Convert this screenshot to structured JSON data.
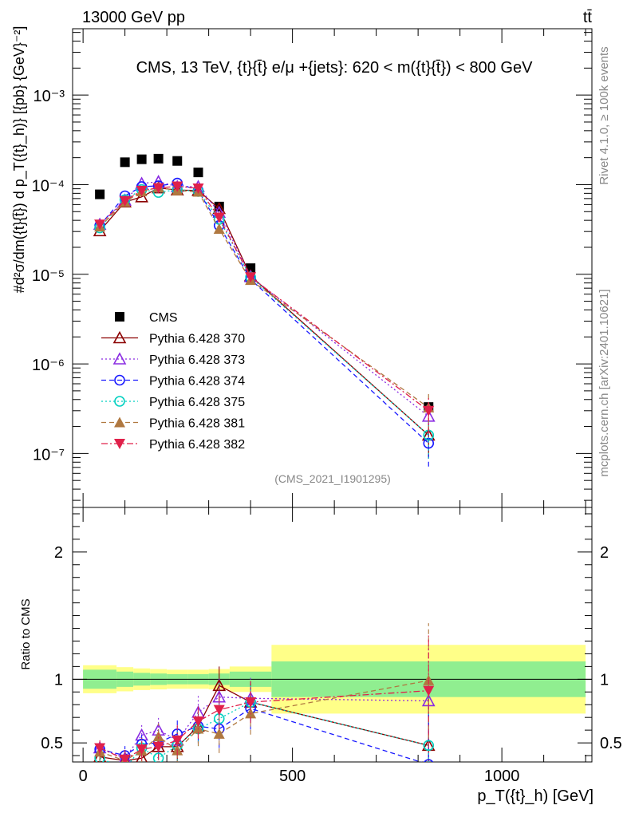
{
  "header": {
    "left": "13000 GeV pp",
    "right": "tt̄"
  },
  "side_labels": {
    "rivet": "Rivet 4.1.0, ≥ 100k events",
    "mcplots": "mcplots.cern.ch [arXiv:2401.10621]"
  },
  "chart_data": [
    {
      "type": "scatter",
      "title": "CMS, 13 TeV, {t}{t̄} e/μ +{jets}: 620 < m({t}{t̄}) < 800 GeV",
      "ylabel": "#d²σ/dm({t}{t̄}) d p_T({t}_h)} [{pb} {GeV}⁻²]",
      "yscale": "log",
      "ylim": [
        2.5e-08,
        0.0055
      ],
      "xlim": [
        -25,
        1215
      ],
      "yticks": [
        "10⁻⁷",
        "10⁻⁶",
        "10⁻⁵",
        "10⁻⁴",
        "10⁻³"
      ],
      "watermark": "(CMS_2021_I1901295)",
      "x": [
        40,
        100,
        140,
        180,
        225,
        275,
        325,
        400,
        825
      ],
      "series": [
        {
          "name": "CMS",
          "color": "#000000",
          "marker": "square",
          "values": [
            7.8e-05,
            0.000178,
            0.000192,
            0.000195,
            0.000184,
            0.000137,
            5.7e-05,
            1.17e-05,
            3.3e-07
          ]
        },
        {
          "name": "Pythia 6.428 370",
          "color": "#8b0000",
          "marker": "triangle-up-open",
          "line": "solid",
          "values": [
            3.05e-05,
            6.4e-05,
            7.3e-05,
            9.2e-05,
            8.7e-05,
            8.6e-05,
            5.4e-05,
            9.6e-06,
            1.6e-07
          ]
        },
        {
          "name": "Pythia 6.428 373",
          "color": "#8a2be2",
          "marker": "triangle-up-open",
          "line": "dotted",
          "values": [
            3.6e-05,
            6.7e-05,
            0.000103,
            0.000108,
            9.5e-05,
            9.5e-05,
            4.9e-05,
            9.4e-06,
            2.6e-07
          ]
        },
        {
          "name": "Pythia 6.428 374",
          "color": "#1a1aff",
          "marker": "circle-open",
          "line": "dashed",
          "values": [
            3.5e-05,
            7.5e-05,
            9.5e-05,
            9.7e-05,
            0.000104,
            8.6e-05,
            3.5e-05,
            8.8e-06,
            1.3e-07
          ]
        },
        {
          "name": "Pythia 6.428 375",
          "color": "#00d0c0",
          "marker": "circle-open",
          "line": "dotted",
          "values": [
            3.3e-05,
            6.8e-05,
            8.8e-05,
            8.2e-05,
            8.8e-05,
            8.4e-05,
            4.1e-05,
            9.3e-06,
            1.6e-07
          ]
        },
        {
          "name": "Pythia 6.428 381",
          "color": "#b07840",
          "marker": "triangle-up",
          "line": "dashed",
          "values": [
            3.4e-05,
            6.4e-05,
            8.4e-05,
            9.3e-05,
            8.6e-05,
            8.3e-05,
            3.2e-05,
            8.6e-06,
            3.25e-07
          ]
        },
        {
          "name": "Pythia 6.428 382",
          "color": "#e0204a",
          "marker": "triangle-down",
          "line": "dashdot",
          "values": [
            3.6e-05,
            6.6e-05,
            8.6e-05,
            9.2e-05,
            9.6e-05,
            9.1e-05,
            4.3e-05,
            9.3e-06,
            3e-07
          ]
        }
      ]
    },
    {
      "type": "scatter",
      "ylabel": "Ratio to CMS",
      "xlabel": "p_T({t}_h) [GeV]",
      "ylim": [
        0.35,
        2.35
      ],
      "xlim": [
        -25,
        1215
      ],
      "yticks": [
        "0.5",
        "1",
        "2"
      ],
      "xticks": [
        "0",
        "500",
        "1000"
      ],
      "band_edges": [
        0,
        80,
        120,
        160,
        200,
        250,
        300,
        350,
        450,
        1200
      ],
      "band_inner": [
        0.075,
        0.06,
        0.05,
        0.045,
        0.04,
        0.04,
        0.045,
        0.06,
        0.14
      ],
      "band_outer": [
        0.11,
        0.095,
        0.085,
        0.08,
        0.075,
        0.075,
        0.08,
        0.1,
        0.27
      ],
      "band_colors": {
        "inner": "#90ee90",
        "outer": "#ffff88"
      },
      "x": [
        40,
        100,
        140,
        180,
        225,
        275,
        325,
        400,
        825
      ],
      "series": [
        {
          "name": "Pythia 6.428 370",
          "values": [
            0.39,
            0.36,
            0.38,
            0.47,
            0.47,
            0.63,
            0.95,
            0.82,
            0.48
          ]
        },
        {
          "name": "Pythia 6.428 373",
          "values": [
            0.46,
            0.38,
            0.56,
            0.6,
            0.52,
            0.74,
            0.86,
            0.85,
            0.83
          ]
        },
        {
          "name": "Pythia 6.428 374",
          "values": [
            0.45,
            0.4,
            0.49,
            0.5,
            0.57,
            0.63,
            0.61,
            0.77,
            0.33
          ]
        },
        {
          "name": "Pythia 6.428 375",
          "values": [
            0.38,
            0.3,
            0.46,
            0.38,
            0.48,
            0.61,
            0.69,
            0.82,
            0.48
          ]
        },
        {
          "name": "Pythia 6.428 381",
          "values": [
            0.43,
            0.36,
            0.44,
            0.55,
            0.44,
            0.61,
            0.57,
            0.73,
            0.99
          ]
        },
        {
          "name": "Pythia 6.428 382",
          "values": [
            0.46,
            0.37,
            0.45,
            0.47,
            0.52,
            0.67,
            0.76,
            0.82,
            0.91
          ]
        }
      ]
    }
  ]
}
